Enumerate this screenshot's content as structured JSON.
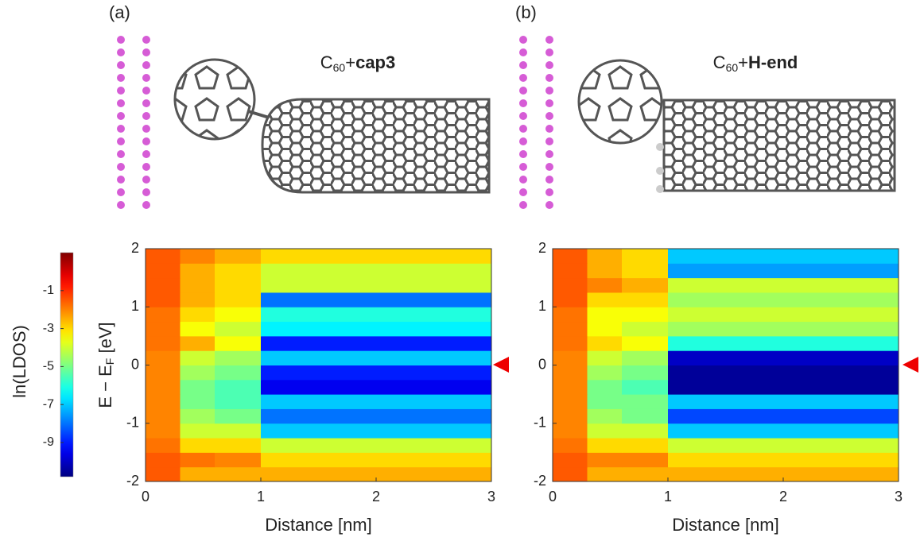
{
  "panel_labels": [
    "(a)",
    "(b)"
  ],
  "colorbar": {
    "label": "ln(LDOS)",
    "colormap": "jet",
    "zlim": [
      -10.8,
      1
    ],
    "ticks": [
      -1,
      -3,
      -5,
      -7,
      -9
    ]
  },
  "chart_data": [
    {
      "type": "heatmap",
      "title": {
        "base": "C",
        "sub": "60",
        "plus": "+",
        "name": "cap3"
      },
      "xlabel": "Distance [nm]",
      "ylabel": {
        "main": "E − E",
        "sub": "F",
        "unit": " [eV]"
      },
      "xlim": [
        0,
        3
      ],
      "xticks": [
        0,
        1,
        2,
        3
      ],
      "ylim": [
        -2,
        2
      ],
      "yticks": [
        -2,
        -1,
        0,
        1,
        2
      ],
      "xbins": [
        0,
        0.3,
        0.6,
        1,
        3
      ],
      "ybins": [
        -2,
        -1.75,
        -1.5,
        -1.25,
        -1,
        -0.75,
        -0.5,
        -0.25,
        0,
        0.25,
        0.5,
        0.75,
        1,
        1.25,
        1.5,
        1.75,
        2
      ],
      "z": [
        [
          -1.5,
          -2.5,
          -2.5,
          -2.5
        ],
        [
          -1.5,
          -1.8,
          -2,
          -3
        ],
        [
          -1.8,
          -3,
          -3,
          -4
        ],
        [
          -2,
          -4,
          -4,
          -7
        ],
        [
          -2,
          -4.5,
          -5,
          -8
        ],
        [
          -2,
          -5,
          -5.5,
          -7
        ],
        [
          -2,
          -5,
          -5.5,
          -9.5
        ],
        [
          -2,
          -4.5,
          -5,
          -9
        ],
        [
          -2,
          -4,
          -4.5,
          -7
        ],
        [
          -1.8,
          -2.5,
          -3.5,
          -9
        ],
        [
          -1.8,
          -3.5,
          -4,
          -6.5
        ],
        [
          -1.8,
          -3,
          -3.5,
          -6
        ],
        [
          -1.5,
          -2.5,
          -3,
          -8
        ],
        [
          -1.5,
          -2.5,
          -3,
          -4
        ],
        [
          -1.5,
          -2.5,
          -3,
          -4
        ],
        [
          -1.5,
          -2,
          -2.5,
          -3
        ]
      ]
    },
    {
      "type": "heatmap",
      "title": {
        "base": "C",
        "sub": "60",
        "plus": "+",
        "name": "H-end"
      },
      "xlabel": "Distance [nm]",
      "xlim": [
        0,
        3
      ],
      "xticks": [
        0,
        1,
        2,
        3
      ],
      "ylim": [
        -2,
        2
      ],
      "yticks": [
        -2,
        -1,
        0,
        1,
        2
      ],
      "xbins": [
        0,
        0.3,
        0.6,
        1,
        3
      ],
      "ybins": [
        -2,
        -1.75,
        -1.5,
        -1.25,
        -1,
        -0.75,
        -0.5,
        -0.25,
        0,
        0.25,
        0.5,
        0.75,
        1,
        1.25,
        1.5,
        1.75,
        2
      ],
      "z": [
        [
          -1.5,
          -2.5,
          -2.5,
          -2.5
        ],
        [
          -1.5,
          -2,
          -2,
          -3
        ],
        [
          -1.8,
          -3,
          -3,
          -4
        ],
        [
          -2,
          -4,
          -4,
          -7
        ],
        [
          -2,
          -4.5,
          -5,
          -8.5
        ],
        [
          -2,
          -5,
          -5,
          -7
        ],
        [
          -2,
          -5,
          -5.5,
          -10.5
        ],
        [
          -2,
          -4.5,
          -5,
          -10.5
        ],
        [
          -2,
          -4,
          -4.5,
          -10
        ],
        [
          -1.8,
          -3,
          -3.5,
          -6
        ],
        [
          -1.8,
          -3.5,
          -4,
          -4.5
        ],
        [
          -1.8,
          -3.5,
          -3.5,
          -4
        ],
        [
          -1.5,
          -3,
          -3,
          -4.5
        ],
        [
          -1.5,
          -2,
          -2.5,
          -4
        ],
        [
          -1.5,
          -2.5,
          -3,
          -7.5
        ],
        [
          -1.5,
          -2.5,
          -3,
          -7
        ]
      ]
    }
  ]
}
